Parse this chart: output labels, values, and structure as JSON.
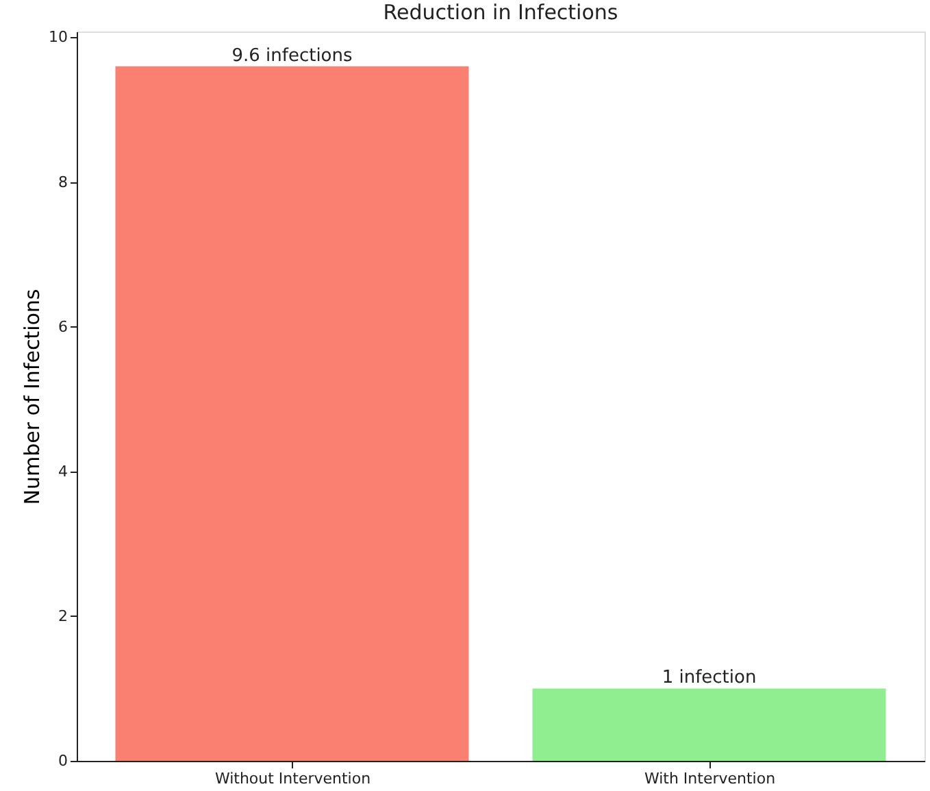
{
  "chart_data": {
    "type": "bar",
    "title": "Reduction in Infections",
    "ylabel": "Number of Infections",
    "categories": [
      "Without Intervention",
      "With Intervention"
    ],
    "values": [
      9.6,
      1
    ],
    "colors": [
      "#fa8072",
      "#90ee90"
    ],
    "value_labels": [
      "9.6 infections",
      "1   infection"
    ],
    "ylim": [
      0,
      10.08
    ],
    "yticks": [
      0,
      2,
      4,
      6,
      8,
      10
    ],
    "grid": false
  }
}
